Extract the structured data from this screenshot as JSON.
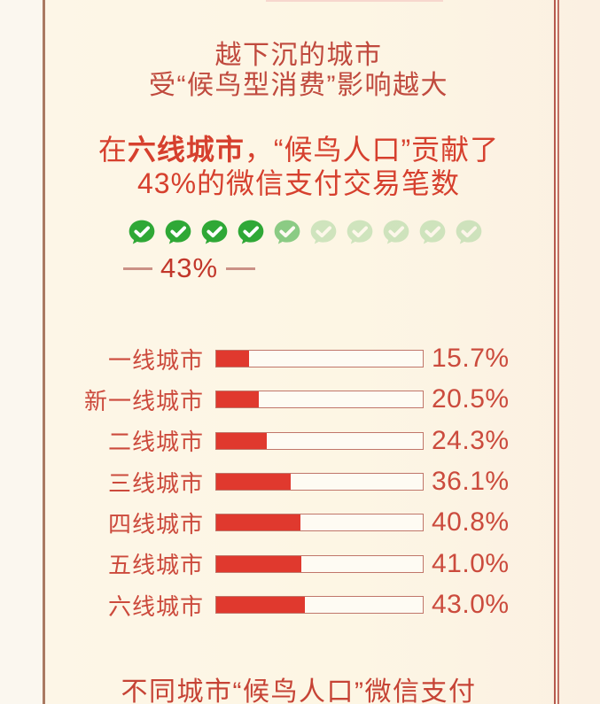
{
  "header": {
    "line1": "越下沉的城市",
    "line2": "受“候鸟型消费”影响越大"
  },
  "highlight": {
    "prefix": "在",
    "emphasis": "六线城市",
    "suffix": "，“候鸟人口”贡献了",
    "line2": "43%的微信支付交易笔数"
  },
  "chart_data": [
    {
      "type": "pictograph",
      "icon": "wechat-check-icon",
      "total_icons": 10,
      "percent": 43,
      "label": "43%",
      "note": "4 solid green bubbles, 1 partially faded, 5 faint — representing 43%"
    },
    {
      "type": "bar",
      "orientation": "horizontal",
      "categories": [
        "一线城市",
        "新一线城市",
        "二线城市",
        "三线城市",
        "四线城市",
        "五线城市",
        "六线城市"
      ],
      "values": [
        15.7,
        20.5,
        24.3,
        36.1,
        40.8,
        41.0,
        43.0
      ],
      "value_labels": [
        "15.7%",
        "20.5%",
        "24.3%",
        "36.1%",
        "40.8%",
        "41.0%",
        "43.0%"
      ],
      "xlim": [
        0,
        100
      ],
      "unit": "%",
      "grid": false,
      "legend": false,
      "caption": "不同城市“候鸟人口”微信支付"
    }
  ],
  "colors": {
    "frame_left": "#aa7a62",
    "frame_right": "#b6594e",
    "top_artifact": "#f5d0c8",
    "title_red": "#c04a3e",
    "subtitle_red": "#d6402e",
    "label_red": "#cc4a3c",
    "value_red": "#cb4b3d",
    "bar_fill_red": "#e0392e",
    "bar_outline": "#c0766a",
    "bar_track": "#fefbf3",
    "pictograph_green": "#2fa836",
    "pictograph_label_red": "#c2372b",
    "dash": "#cb9186",
    "footer_red": "#c64335"
  }
}
